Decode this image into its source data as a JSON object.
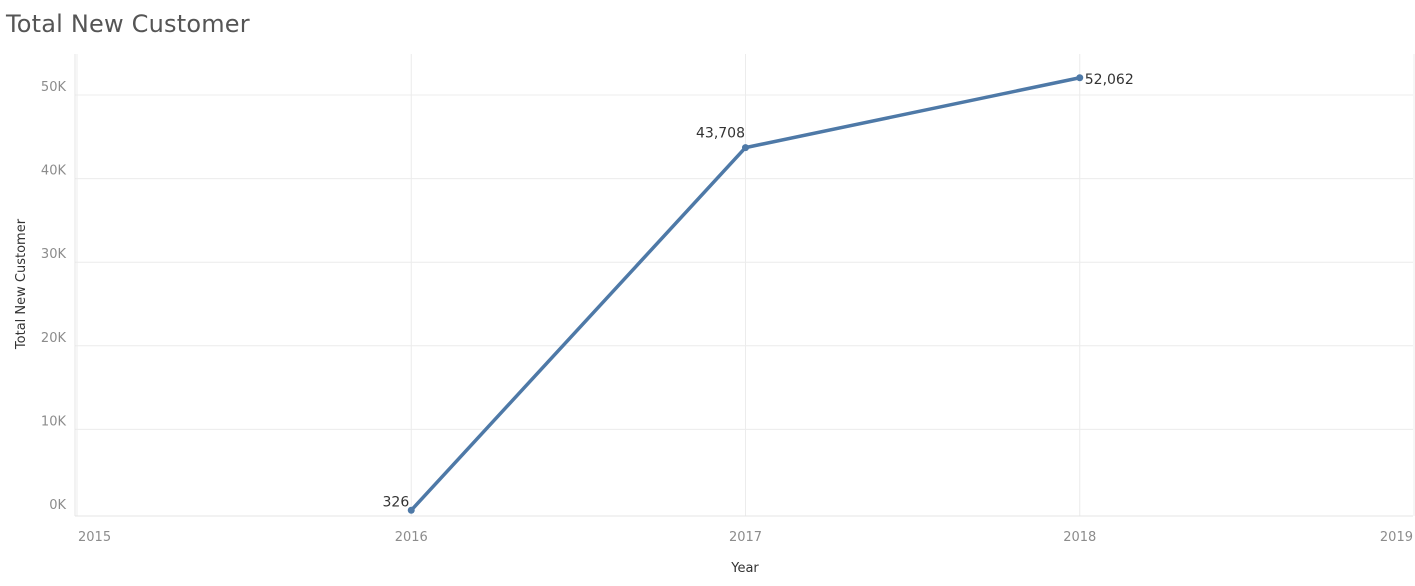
{
  "chart_data": {
    "type": "line",
    "title": "Total New Customer",
    "xlabel": "Year",
    "ylabel": "Total New Customer",
    "x_ticks": [
      "2015",
      "2016",
      "2017",
      "2018",
      "2019"
    ],
    "y_ticks": [
      "0K",
      "10K",
      "20K",
      "30K",
      "40K",
      "50K"
    ],
    "xlim": [
      2015,
      2019
    ],
    "ylim": [
      0,
      50000
    ],
    "grid": true,
    "series": [
      {
        "x": [
          2016,
          2017,
          2018
        ],
        "values": [
          326,
          43708,
          52062
        ],
        "labels": [
          "326",
          "43,708",
          "52,062"
        ],
        "color": "#4e79a7"
      }
    ]
  }
}
